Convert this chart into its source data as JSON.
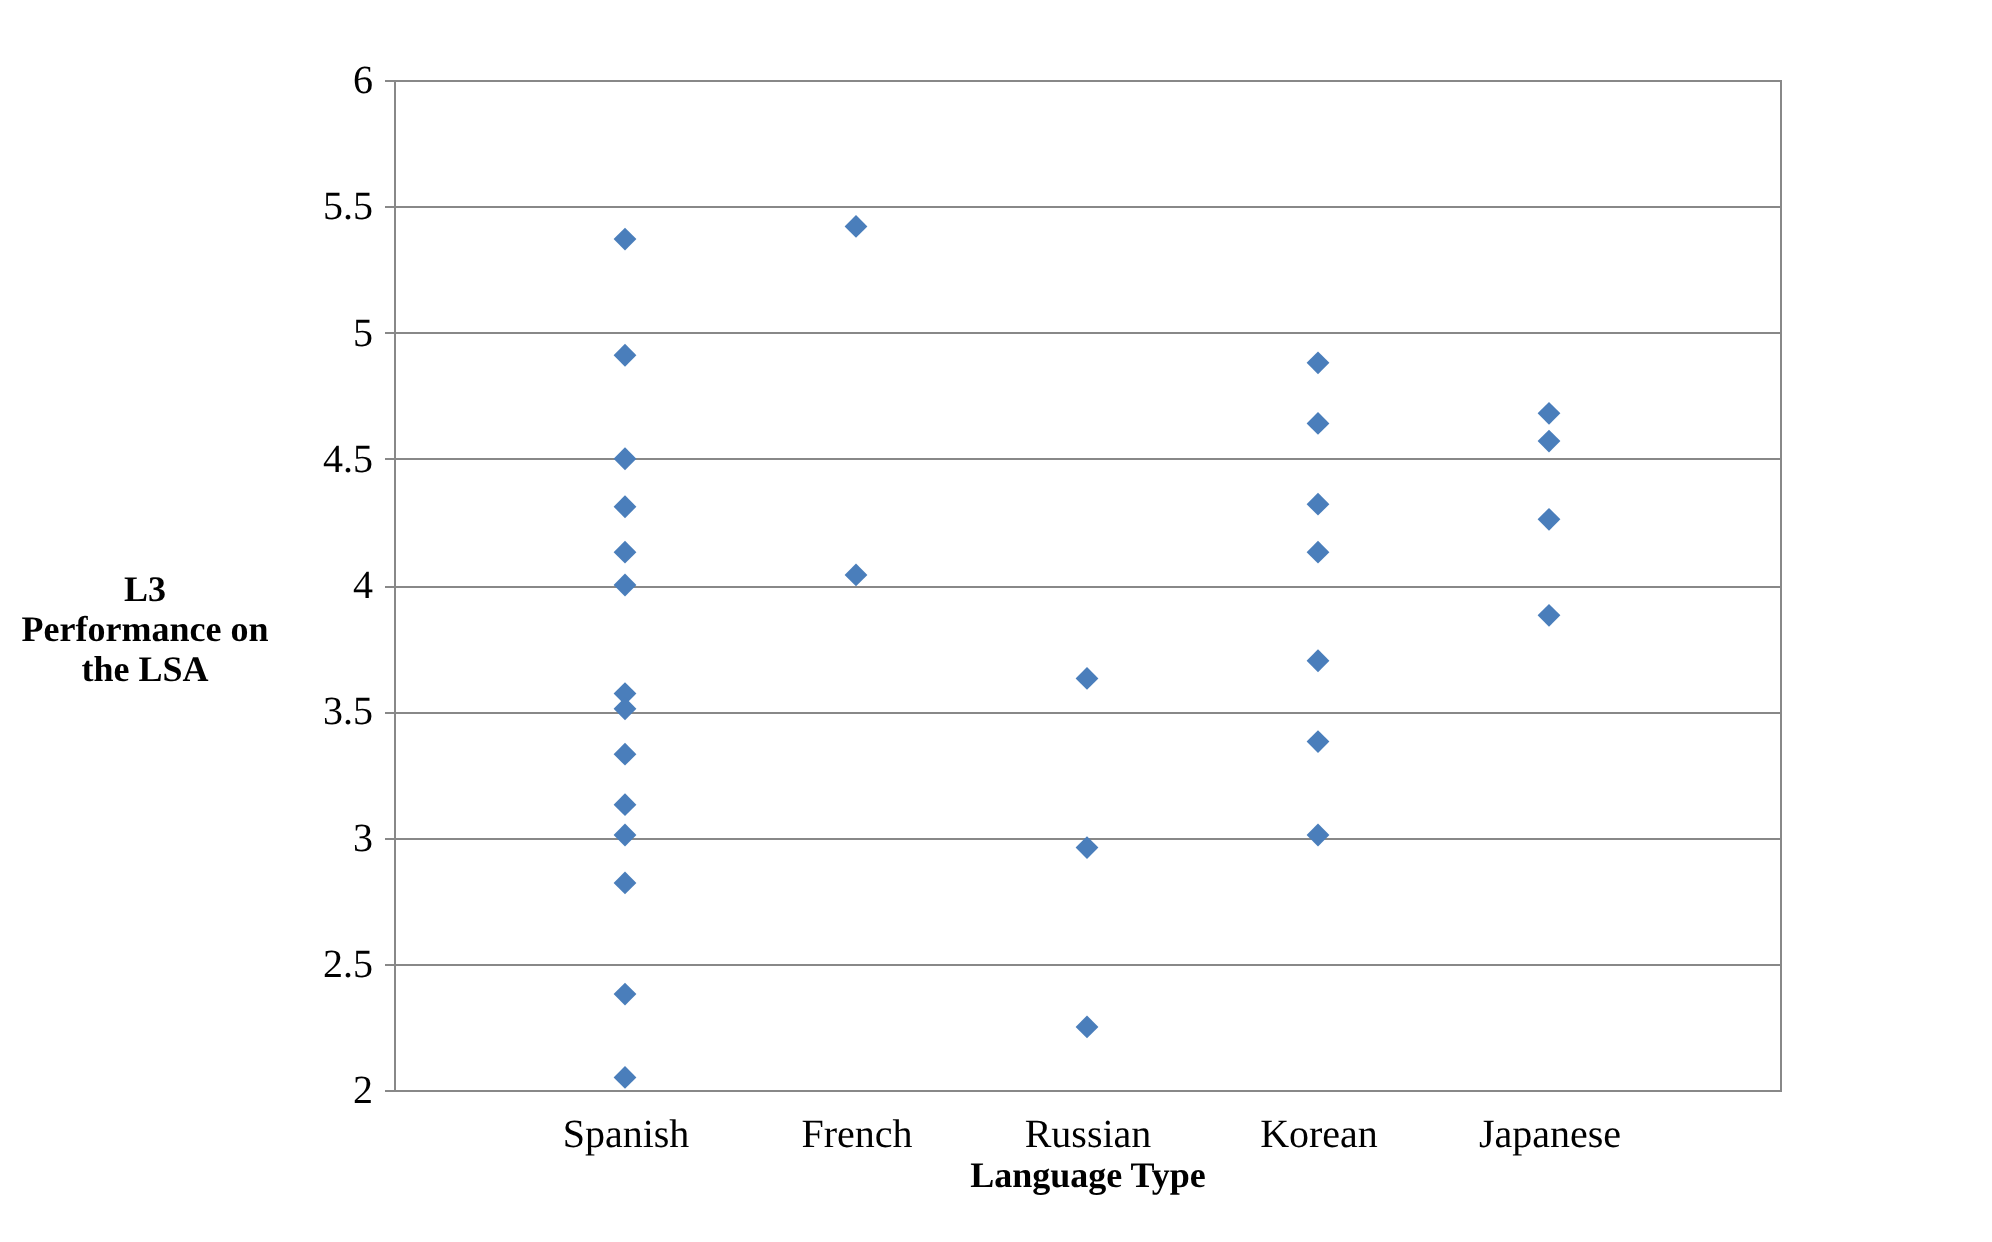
{
  "chart_data": {
    "type": "scatter",
    "xlabel": "Language Type",
    "ylabel": "L3\nPerformance on\nthe LSA",
    "categories": [
      "Spanish",
      "French",
      "Russian",
      "Korean",
      "Japanese"
    ],
    "series": [
      {
        "color": "#4a7ebb",
        "marker": "diamond",
        "x": [
          "Spanish",
          "Spanish",
          "Spanish",
          "Spanish",
          "Spanish",
          "Spanish",
          "Spanish",
          "Spanish",
          "Spanish",
          "Spanish",
          "Spanish",
          "Spanish",
          "Spanish",
          "Spanish",
          "French",
          "French",
          "Russian",
          "Russian",
          "Russian",
          "Korean",
          "Korean",
          "Korean",
          "Korean",
          "Korean",
          "Korean",
          "Korean",
          "Japanese",
          "Japanese",
          "Japanese",
          "Japanese"
        ],
        "values": [
          5.37,
          4.91,
          4.5,
          4.31,
          4.13,
          4.0,
          3.57,
          3.51,
          3.33,
          3.13,
          3.01,
          2.82,
          2.38,
          2.05,
          5.42,
          4.04,
          3.63,
          2.96,
          2.25,
          4.88,
          4.64,
          4.32,
          4.13,
          3.7,
          3.38,
          3.01,
          4.68,
          4.57,
          4.26,
          3.88
        ]
      }
    ],
    "ylim": [
      2,
      6
    ],
    "yticks": [
      2,
      2.5,
      3,
      3.5,
      4,
      4.5,
      5,
      5.5,
      6
    ],
    "grid": "y"
  }
}
